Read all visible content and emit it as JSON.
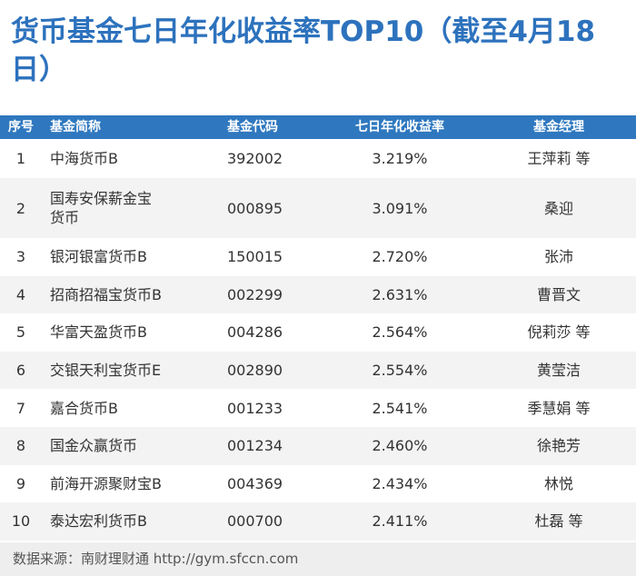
{
  "title": "货币基金七日年化收益率TOP10（截至4月18日）",
  "table": {
    "headers": [
      "序号",
      "基金简称",
      "基金代码",
      "七日年化收益率",
      "基金经理"
    ],
    "rows": [
      [
        "1",
        "中海货币B",
        "392002",
        "3.219%",
        "王萍莉 等"
      ],
      [
        "2",
        "国寿安保薪金宝货币",
        "000895",
        "3.091%",
        "桑迎"
      ],
      [
        "3",
        "银河银富货币B",
        "150015",
        "2.720%",
        "张沛"
      ],
      [
        "4",
        "招商招福宝货币B",
        "002299",
        "2.631%",
        "曹晋文"
      ],
      [
        "5",
        "华富天盈货币B",
        "004286",
        "2.564%",
        "倪莉莎 等"
      ],
      [
        "6",
        "交银天利宝货币E",
        "002890",
        "2.554%",
        "黄莹洁"
      ],
      [
        "7",
        "嘉合货币B",
        "001233",
        "2.541%",
        "季慧娟 等"
      ],
      [
        "8",
        "国金众赢货币",
        "001234",
        "2.460%",
        "徐艳芳"
      ],
      [
        "9",
        "前海开源聚财宝B",
        "004369",
        "2.434%",
        "林悦"
      ],
      [
        "10",
        "泰达宏利货币B",
        "000700",
        "2.411%",
        "杜磊 等"
      ]
    ]
  },
  "footer": "数据来源：南财理财通 http://gym.sfccn.com"
}
